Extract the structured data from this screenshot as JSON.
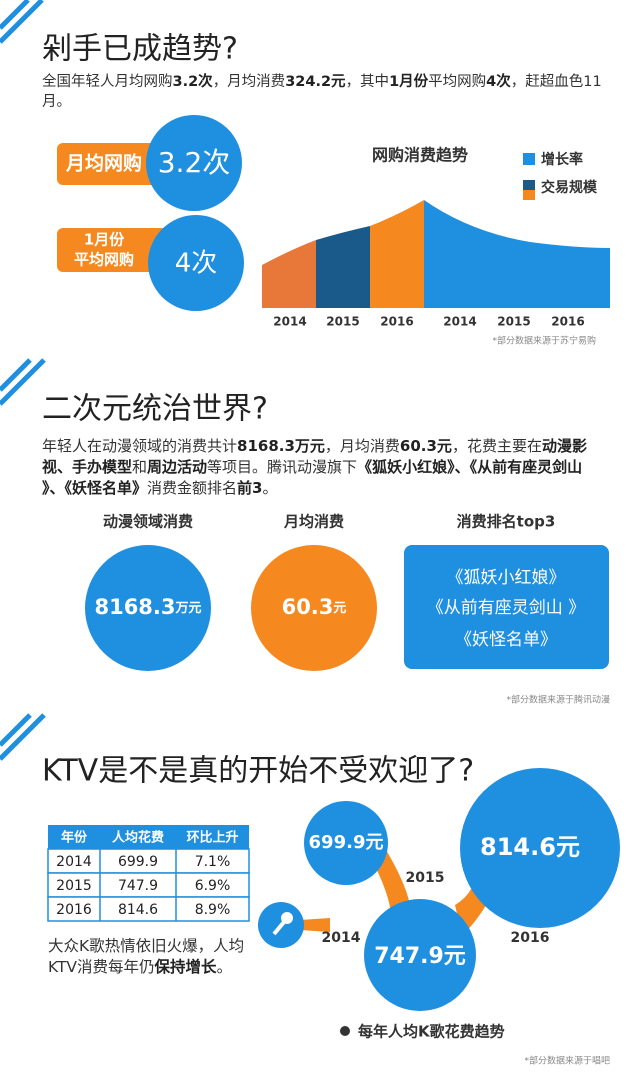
{
  "sections": [
    {
      "title": "剁手已成趋势?",
      "intro": [
        {
          "text": "全国年轻人月均网购",
          "bold": false
        },
        {
          "text": "3.2次",
          "bold": true
        },
        {
          "text": "，月均消费",
          "bold": false
        },
        {
          "text": "324.2元",
          "bold": true
        },
        {
          "text": "，其中",
          "bold": false
        },
        {
          "text": "1月份",
          "bold": true
        },
        {
          "text": "平均网购",
          "bold": false
        },
        {
          "text": "4次",
          "bold": true
        },
        {
          "text": "，赶超血色11月。",
          "bold": false
        }
      ],
      "stats": [
        {
          "label": [
            "月均网购"
          ],
          "value": "3.2次"
        },
        {
          "label": [
            "1月份",
            "平均网购"
          ],
          "value": "4次"
        }
      ],
      "chart": {
        "title": "网购消费趋势",
        "legend": [
          "增长率",
          "交易规模"
        ],
        "years": [
          "2014",
          "2015",
          "2016",
          "2014",
          "2015",
          "2016"
        ]
      },
      "source": "*部分数据来源于苏宁易购"
    },
    {
      "title": "二次元统治世界?",
      "intro": [
        {
          "text": "年轻人在动漫领域的消费共计",
          "bold": false
        },
        {
          "text": "8168.3万元",
          "bold": true
        },
        {
          "text": "，月均消费",
          "bold": false
        },
        {
          "text": "60.3元",
          "bold": true
        },
        {
          "text": "，花费主要在",
          "bold": false
        },
        {
          "text": "动漫影视、手办模型",
          "bold": true
        },
        {
          "text": "和",
          "bold": false
        },
        {
          "text": "周边活动",
          "bold": true
        },
        {
          "text": "等项目。腾讯动漫旗下",
          "bold": false
        },
        {
          "text": "《狐妖小红娘》、《从前有座灵剑山 》、《妖怪名单》",
          "bold": true
        },
        {
          "text": "消费金额排名",
          "bold": false
        },
        {
          "text": "前3",
          "bold": true
        },
        {
          "text": "。",
          "bold": false
        }
      ],
      "cards": [
        {
          "label": "动漫领域消费",
          "value": "8168.3",
          "unit": "万元"
        },
        {
          "label": "月均消费",
          "value": "60.3",
          "unit": "元"
        },
        {
          "label": "消费排名top3",
          "items": [
            "《狐妖小红娘》",
            "《从前有座灵剑山 》",
            "《妖怪名单》"
          ]
        }
      ],
      "source": "*部分数据来源于腾讯动漫"
    },
    {
      "title": "KTV是不是真的开始不受欢迎了?",
      "table": {
        "header": [
          "年份",
          "人均花费",
          "环比上升"
        ],
        "rows": [
          [
            "2014",
            "699.9",
            "7.1%"
          ],
          [
            "2015",
            "747.9",
            "6.9%"
          ],
          [
            "2016",
            "814.6",
            "8.9%"
          ]
        ]
      },
      "note": [
        {
          "text": "大众K歌热情依旧火爆，人均KTV消费每年仍",
          "bold": false
        },
        {
          "text": "保持增长",
          "bold": true
        },
        {
          "text": "。",
          "bold": false
        }
      ],
      "bubbles": [
        {
          "label": "699.9元",
          "year": "2014"
        },
        {
          "label": "747.9元",
          "year": "2015"
        },
        {
          "label": "814.6元",
          "year": "2016"
        }
      ],
      "caption": "每年人均K歌花费趋势",
      "source": "*部分数据来源于唱吧"
    }
  ]
}
